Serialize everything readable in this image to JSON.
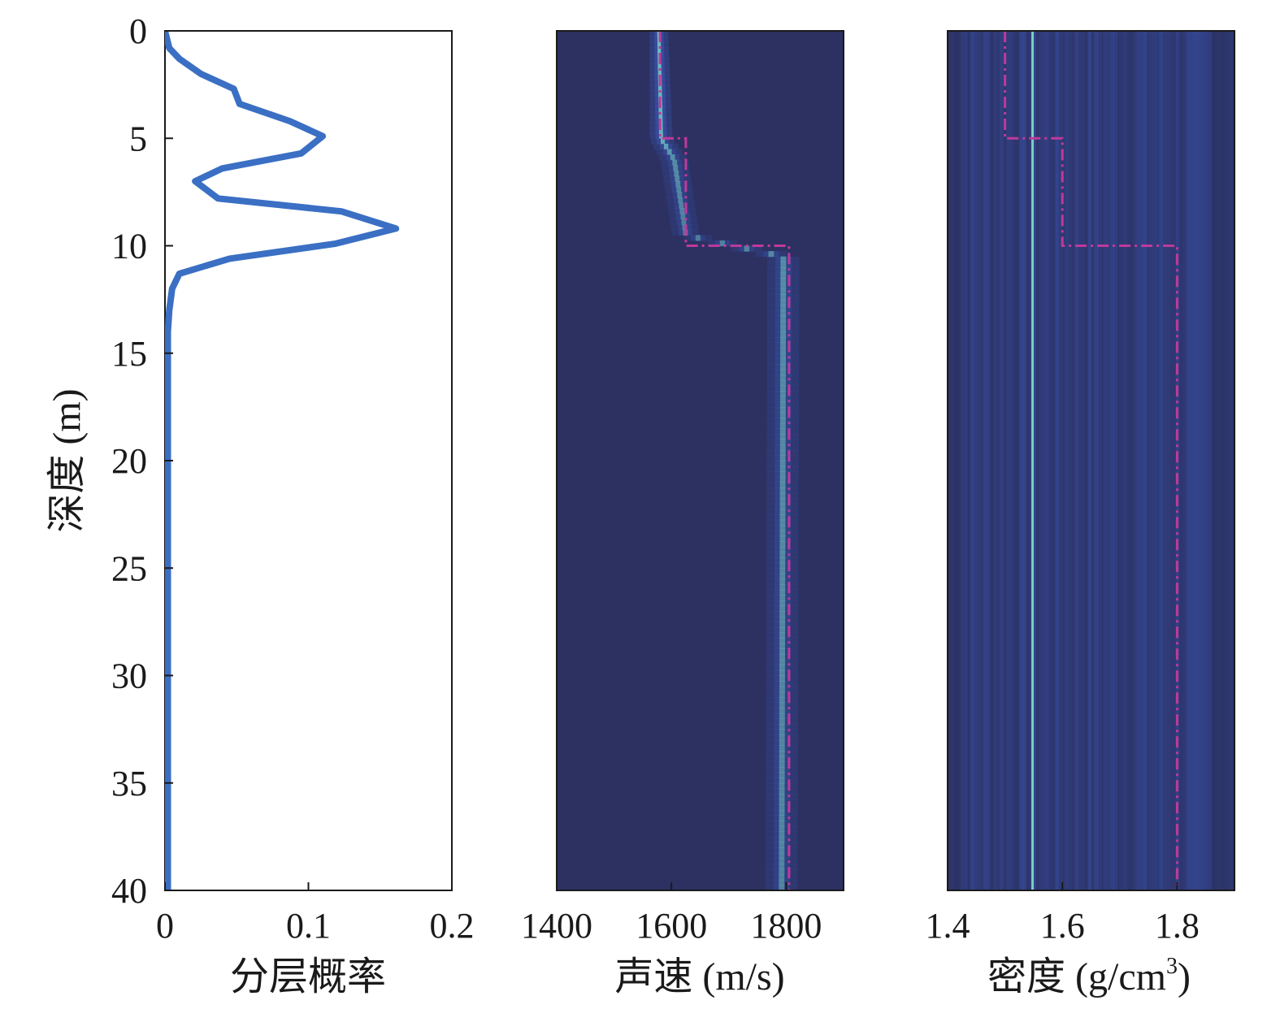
{
  "colors": {
    "curve": "#3a6fc4",
    "true_profile": "#c0399a",
    "heatmap_bg": "#2c3162",
    "heatmap_mid": "#3a55b0",
    "heatmap_hot": "#7fe0c8",
    "frame": "#1a1a1a"
  },
  "chart_data": [
    {
      "type": "line",
      "xlabel": "分层概率",
      "ylabel": "深度 (m)",
      "xlim": [
        0,
        0.2
      ],
      "ylim": [
        0,
        40
      ],
      "y_inverted": true,
      "xticks": [
        0,
        0.1,
        0.2
      ],
      "xtick_labels": [
        "0",
        "0.1",
        "0.2"
      ],
      "yticks": [
        0,
        5,
        10,
        15,
        20,
        25,
        30,
        35,
        40
      ],
      "ytick_labels": [
        "0",
        "5",
        "10",
        "15",
        "20",
        "25",
        "30",
        "35",
        "40"
      ],
      "grid": false,
      "series": [
        {
          "depth": [
            0,
            0.8,
            1.3,
            2.0,
            2.7,
            3.4,
            4.2,
            4.9,
            5.7,
            6.4,
            7.0,
            7.8,
            8.4,
            9.2,
            9.9,
            10.6,
            11.3,
            12.0,
            13.0,
            14.0,
            16.0,
            20.0,
            25.0,
            30.0,
            35.0,
            40.0
          ],
          "probability": [
            0.0,
            0.003,
            0.01,
            0.025,
            0.048,
            0.052,
            0.087,
            0.11,
            0.095,
            0.04,
            0.021,
            0.037,
            0.123,
            0.161,
            0.119,
            0.045,
            0.01,
            0.005,
            0.003,
            0.002,
            0.002,
            0.002,
            0.002,
            0.002,
            0.002,
            0.002
          ]
        }
      ]
    },
    {
      "type": "heatmap",
      "xlabel": "声速 (m/s)",
      "xlim": [
        1400,
        1900
      ],
      "ylim": [
        0,
        40
      ],
      "y_inverted": true,
      "xticks": [
        1400,
        1600,
        1800
      ],
      "xtick_labels": [
        "1400",
        "1600",
        "1800"
      ],
      "grid": false,
      "true_profile": {
        "depth": [
          0,
          5,
          5,
          10,
          10,
          40
        ],
        "value": [
          1580,
          1580,
          1625,
          1625,
          1805,
          1805
        ]
      },
      "density_ridge": [
        {
          "depth": 0,
          "center": 1578,
          "width": 8,
          "intensity": 1.0
        },
        {
          "depth": 5,
          "center": 1582,
          "width": 10,
          "intensity": 0.9
        },
        {
          "depth": 6,
          "center": 1605,
          "width": 12,
          "intensity": 0.6
        },
        {
          "depth": 9.5,
          "center": 1625,
          "width": 12,
          "intensity": 0.5
        },
        {
          "depth": 10.5,
          "center": 1795,
          "width": 14,
          "intensity": 0.6
        },
        {
          "depth": 40,
          "center": 1792,
          "width": 14,
          "intensity": 0.55
        }
      ]
    },
    {
      "type": "heatmap",
      "xlabel": "密度 (g/cm3)",
      "xlim": [
        1.4,
        1.9
      ],
      "ylim": [
        0,
        40
      ],
      "y_inverted": true,
      "xticks": [
        1.4,
        1.6,
        1.8
      ],
      "xtick_labels": [
        "1.4",
        "1.6",
        "1.8"
      ],
      "grid": false,
      "true_profile": {
        "depth": [
          0,
          5,
          5,
          10,
          10,
          40
        ],
        "value": [
          1.5,
          1.5,
          1.6,
          1.6,
          1.8,
          1.8
        ]
      },
      "density_peak": {
        "value": 1.548,
        "intensity": 1.0
      }
    }
  ]
}
